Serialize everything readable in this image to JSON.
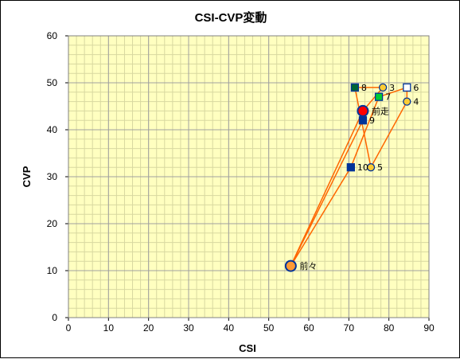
{
  "chart_data": {
    "type": "scatter",
    "title": "CSI-CVP変動",
    "xlabel": "CSI",
    "ylabel": "CVP",
    "xlim": [
      0,
      90
    ],
    "ylim": [
      0,
      60
    ],
    "xticks": [
      0,
      10,
      20,
      30,
      40,
      50,
      60,
      70,
      80,
      90
    ],
    "yticks": [
      0,
      10,
      20,
      30,
      40,
      50,
      60
    ],
    "x_minor_step": 2,
    "y_minor_step": 2,
    "grid": true,
    "legend": "none",
    "colors": {
      "plot_bg": "#ffffc0",
      "grid_major": "#a0a0a0",
      "grid_minor": "#d8d8a0",
      "line": "#ff6600",
      "navy": "#003399",
      "orange": "#ff9933",
      "yellow": "#ffcc33",
      "green": "#00cc33",
      "dark_green": "#006633",
      "red": "#ff0000",
      "white": "#ffffff"
    },
    "points": [
      {
        "label": "前々",
        "x": 55.5,
        "y": 11,
        "marker": "circle",
        "fill": "orange",
        "stroke": "navy",
        "size": "large"
      },
      {
        "label": "前走",
        "x": 73.5,
        "y": 44,
        "marker": "circle",
        "fill": "red",
        "stroke": "navy",
        "size": "large"
      },
      {
        "label": "3",
        "x": 78.5,
        "y": 49,
        "marker": "circle",
        "fill": "yellow",
        "stroke": "navy",
        "size": "small"
      },
      {
        "label": "4",
        "x": 84.5,
        "y": 46,
        "marker": "circle",
        "fill": "yellow",
        "stroke": "navy",
        "size": "small"
      },
      {
        "label": "5",
        "x": 75.5,
        "y": 32,
        "marker": "circle",
        "fill": "yellow",
        "stroke": "navy",
        "size": "small"
      },
      {
        "label": "6",
        "x": 84.5,
        "y": 49,
        "marker": "square",
        "fill": "white",
        "stroke": "navy",
        "size": "small"
      },
      {
        "label": "7",
        "x": 77.5,
        "y": 47,
        "marker": "square",
        "fill": "green",
        "stroke": "navy",
        "size": "small"
      },
      {
        "label": "8",
        "x": 71.5,
        "y": 49,
        "marker": "square",
        "fill": "dark_green",
        "stroke": "navy",
        "size": "small"
      },
      {
        "label": "9",
        "x": 73.5,
        "y": 42,
        "marker": "square",
        "fill": "navy",
        "stroke": "navy",
        "size": "small"
      },
      {
        "label": "10",
        "x": 70.5,
        "y": 32,
        "marker": "square",
        "fill": "navy",
        "stroke": "navy",
        "size": "small"
      }
    ],
    "line_order": [
      "10",
      "前々",
      "9",
      "前々",
      "前走",
      "3",
      "8",
      "5",
      "4",
      "6",
      "7",
      "10"
    ]
  }
}
